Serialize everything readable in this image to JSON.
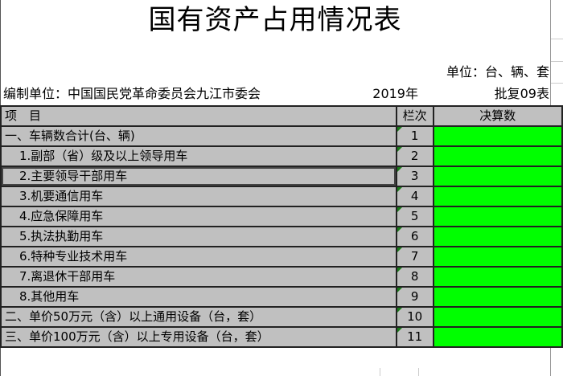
{
  "title": "国有资产占用情况表",
  "unit_label": "单位：台、辆、套",
  "org_label": "编制单位：中国国民党革命委员会九江市委会",
  "year_label": "2019年",
  "form_label": "批复09表",
  "header": {
    "item": "项　目",
    "col": "栏次",
    "value": "决算数"
  },
  "rows": [
    {
      "item": "一、车辆数合计(台、辆)",
      "col": "1",
      "value": ""
    },
    {
      "item": "1.副部（省）级及以上领导用车",
      "col": "2",
      "value": ""
    },
    {
      "item": "2.主要领导干部用车",
      "col": "3",
      "value": ""
    },
    {
      "item": "3.机要通信用车",
      "col": "4",
      "value": ""
    },
    {
      "item": "4.应急保障用车",
      "col": "5",
      "value": ""
    },
    {
      "item": "5.执法执勤用车",
      "col": "6",
      "value": ""
    },
    {
      "item": "6.特种专业技术用车",
      "col": "7",
      "value": ""
    },
    {
      "item": "7.离退休干部用车",
      "col": "8",
      "value": ""
    },
    {
      "item": "8.其他用车",
      "col": "9",
      "value": ""
    },
    {
      "item": "二、单价50万元（含）以上通用设备（台，套）",
      "col": "10",
      "value": ""
    },
    {
      "item": "三、单价100万元（含）以上专用设备（台，套）",
      "col": "11",
      "value": ""
    }
  ],
  "colors": {
    "header_fill": "#c0c0c0",
    "value_fill": "#00ff00",
    "comment_marker": "#1a7a1a"
  }
}
